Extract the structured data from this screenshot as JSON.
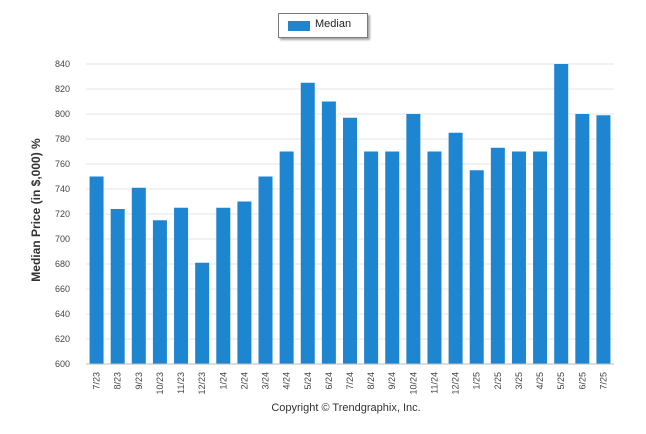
{
  "legend": {
    "label": "Median",
    "color": "#1e86d0"
  },
  "copyright": "Copyright © Trendgraphix, Inc.",
  "chart_data": {
    "type": "bar",
    "ylabel": "Median Price (in $,000) %",
    "xlabel": "",
    "ylim": [
      600,
      840
    ],
    "yticks": [
      600,
      620,
      640,
      660,
      680,
      700,
      720,
      740,
      760,
      780,
      800,
      820,
      840
    ],
    "grid": true,
    "legend_position": "top-center",
    "categories": [
      "7/23",
      "8/23",
      "9/23",
      "10/23",
      "11/23",
      "12/23",
      "1/24",
      "2/24",
      "3/24",
      "4/24",
      "5/24",
      "6/24",
      "7/24",
      "8/24",
      "9/24",
      "10/24",
      "11/24",
      "12/24",
      "1/25",
      "2/25",
      "3/25",
      "4/25",
      "5/25",
      "6/25",
      "7/25"
    ],
    "series": [
      {
        "name": "Median",
        "values": [
          750,
          724,
          741,
          715,
          725,
          681,
          725,
          730,
          750,
          770,
          825,
          810,
          797,
          770,
          770,
          800,
          770,
          785,
          755,
          773,
          770,
          770,
          840,
          800,
          799
        ]
      }
    ]
  }
}
